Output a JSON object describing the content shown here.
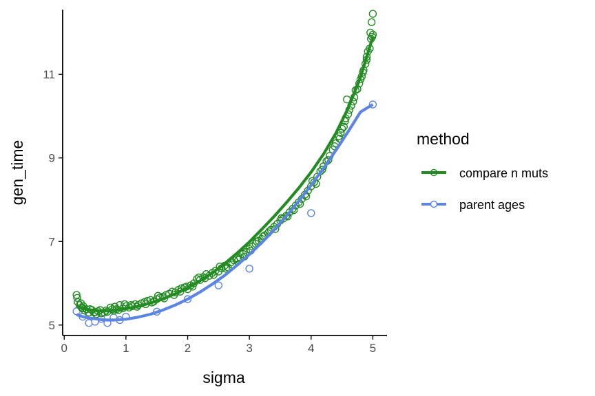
{
  "chart_data": {
    "type": "scatter",
    "xlabel": "sigma",
    "ylabel": "gen_time",
    "xlim": [
      -0.025,
      5.23
    ],
    "ylim": [
      4.75,
      12.55
    ],
    "xticks": [
      0,
      1,
      2,
      3,
      4,
      5
    ],
    "yticks": [
      5,
      7,
      9,
      11
    ],
    "xtick_labels": [
      "0",
      "1",
      "2",
      "3",
      "4",
      "5"
    ],
    "ytick_labels": [
      "5",
      "7",
      "9",
      "11"
    ],
    "grid": false,
    "legend": {
      "title": "method",
      "placement": "right"
    },
    "series": [
      {
        "name": "compare n muts",
        "color": "#228B22",
        "points": [
          [
            0.2,
            5.72
          ],
          [
            0.22,
            5.55
          ],
          [
            0.25,
            5.48
          ],
          [
            0.28,
            5.42
          ],
          [
            0.3,
            5.4
          ],
          [
            0.33,
            5.35
          ],
          [
            0.36,
            5.38
          ],
          [
            0.4,
            5.3
          ],
          [
            0.45,
            5.36
          ],
          [
            0.5,
            5.31
          ],
          [
            0.55,
            5.33
          ],
          [
            0.6,
            5.28
          ],
          [
            0.65,
            5.3
          ],
          [
            0.7,
            5.32
          ],
          [
            0.75,
            5.42
          ],
          [
            0.8,
            5.35
          ],
          [
            0.85,
            5.38
          ],
          [
            0.9,
            5.48
          ],
          [
            0.95,
            5.4
          ],
          [
            1.0,
            5.45
          ],
          [
            1.05,
            5.42
          ],
          [
            1.1,
            5.45
          ],
          [
            1.15,
            5.5
          ],
          [
            1.2,
            5.48
          ],
          [
            1.25,
            5.52
          ],
          [
            1.3,
            5.55
          ],
          [
            1.35,
            5.58
          ],
          [
            1.4,
            5.6
          ],
          [
            1.45,
            5.56
          ],
          [
            1.5,
            5.62
          ],
          [
            1.55,
            5.66
          ],
          [
            1.6,
            5.68
          ],
          [
            1.65,
            5.72
          ],
          [
            1.7,
            5.75
          ],
          [
            1.75,
            5.8
          ],
          [
            1.8,
            5.78
          ],
          [
            1.85,
            5.84
          ],
          [
            1.9,
            5.88
          ],
          [
            1.95,
            5.9
          ],
          [
            2.0,
            5.86
          ],
          [
            2.05,
            5.95
          ],
          [
            2.1,
            6.0
          ],
          [
            2.15,
            6.1
          ],
          [
            2.2,
            6.08
          ],
          [
            2.25,
            6.15
          ],
          [
            2.3,
            6.22
          ],
          [
            2.35,
            6.18
          ],
          [
            2.4,
            6.25
          ],
          [
            2.45,
            6.3
          ],
          [
            2.5,
            6.28
          ],
          [
            2.55,
            6.36
          ],
          [
            2.6,
            6.42
          ],
          [
            2.65,
            6.38
          ],
          [
            2.7,
            6.5
          ],
          [
            2.75,
            6.55
          ],
          [
            2.8,
            6.6
          ],
          [
            2.85,
            6.62
          ],
          [
            2.9,
            6.7
          ],
          [
            2.95,
            6.75
          ],
          [
            3.0,
            6.82
          ],
          [
            3.05,
            6.88
          ],
          [
            3.1,
            6.95
          ],
          [
            3.15,
            7.02
          ],
          [
            3.2,
            7.06
          ],
          [
            3.25,
            7.15
          ],
          [
            3.3,
            7.2
          ],
          [
            3.35,
            7.28
          ],
          [
            3.4,
            7.35
          ],
          [
            3.45,
            7.42
          ],
          [
            3.5,
            7.5
          ],
          [
            3.55,
            7.55
          ],
          [
            3.6,
            7.62
          ],
          [
            3.65,
            7.7
          ],
          [
            3.7,
            7.78
          ],
          [
            3.75,
            7.86
          ],
          [
            3.8,
            7.94
          ],
          [
            3.85,
            8.02
          ],
          [
            3.9,
            8.12
          ],
          [
            3.95,
            8.22
          ],
          [
            4.0,
            8.32
          ],
          [
            4.05,
            8.42
          ],
          [
            4.1,
            8.55
          ],
          [
            4.15,
            8.68
          ],
          [
            4.2,
            8.8
          ],
          [
            4.25,
            8.92
          ],
          [
            4.3,
            9.05
          ],
          [
            4.35,
            9.2
          ],
          [
            4.4,
            9.35
          ],
          [
            4.45,
            9.52
          ],
          [
            4.5,
            9.7
          ],
          [
            4.55,
            9.88
          ],
          [
            4.6,
            10.05
          ],
          [
            4.65,
            10.25
          ],
          [
            4.7,
            10.45
          ],
          [
            4.75,
            10.65
          ],
          [
            4.8,
            10.88
          ],
          [
            4.85,
            11.1
          ],
          [
            4.9,
            11.35
          ],
          [
            4.95,
            11.62
          ],
          [
            5.0,
            12.45
          ],
          [
            0.21,
            5.65
          ],
          [
            0.27,
            5.52
          ],
          [
            0.31,
            5.45
          ],
          [
            0.42,
            5.38
          ],
          [
            0.48,
            5.3
          ],
          [
            0.52,
            5.26
          ],
          [
            0.58,
            5.36
          ],
          [
            0.68,
            5.35
          ],
          [
            0.78,
            5.38
          ],
          [
            0.82,
            5.44
          ],
          [
            0.88,
            5.36
          ],
          [
            0.98,
            5.5
          ],
          [
            1.08,
            5.48
          ],
          [
            1.18,
            5.44
          ],
          [
            1.32,
            5.5
          ],
          [
            1.42,
            5.54
          ],
          [
            1.52,
            5.7
          ],
          [
            1.62,
            5.64
          ],
          [
            1.78,
            5.72
          ],
          [
            1.88,
            5.8
          ],
          [
            1.98,
            5.92
          ],
          [
            2.08,
            5.92
          ],
          [
            2.18,
            6.14
          ],
          [
            2.28,
            6.12
          ],
          [
            2.42,
            6.2
          ],
          [
            2.52,
            6.4
          ],
          [
            2.62,
            6.35
          ],
          [
            2.72,
            6.45
          ],
          [
            2.82,
            6.56
          ],
          [
            2.92,
            6.64
          ],
          [
            3.02,
            6.78
          ],
          [
            3.12,
            7.0
          ],
          [
            3.22,
            7.12
          ],
          [
            3.32,
            7.24
          ],
          [
            3.42,
            7.3
          ],
          [
            3.52,
            7.56
          ],
          [
            3.62,
            7.6
          ],
          [
            3.72,
            7.75
          ],
          [
            3.82,
            7.9
          ],
          [
            3.92,
            8.08
          ],
          [
            4.02,
            8.45
          ],
          [
            4.08,
            8.38
          ],
          [
            4.18,
            8.72
          ],
          [
            4.28,
            8.95
          ],
          [
            4.38,
            9.28
          ],
          [
            4.48,
            9.6
          ],
          [
            4.53,
            9.75
          ],
          [
            4.58,
            10.4
          ],
          [
            4.62,
            10.15
          ],
          [
            4.68,
            10.35
          ],
          [
            4.72,
            10.62
          ],
          [
            4.78,
            10.78
          ],
          [
            4.82,
            10.95
          ],
          [
            4.88,
            11.25
          ],
          [
            4.92,
            11.55
          ],
          [
            4.96,
            12.0
          ],
          [
            4.98,
            12.25
          ],
          [
            5.0,
            11.95
          ],
          [
            4.97,
            11.85
          ],
          [
            4.99,
            11.9
          ],
          [
            4.9,
            11.42
          ],
          [
            4.84,
            11.05
          ],
          [
            4.56,
            9.95
          ],
          [
            4.46,
            9.46
          ]
        ],
        "fit_x": [
          0.2,
          0.3,
          0.4,
          0.5,
          0.6,
          0.7,
          0.8,
          0.9,
          1.0,
          1.2,
          1.4,
          1.6,
          1.8,
          2.0,
          2.2,
          2.4,
          2.6,
          2.8,
          3.0,
          3.2,
          3.4,
          3.6,
          3.8,
          4.0,
          4.2,
          4.4,
          4.6,
          4.8,
          5.0
        ],
        "fit_y": [
          5.45,
          5.4,
          5.37,
          5.35,
          5.34,
          5.34,
          5.35,
          5.37,
          5.39,
          5.45,
          5.53,
          5.63,
          5.75,
          5.89,
          6.06,
          6.25,
          6.47,
          6.72,
          6.99,
          7.29,
          7.6,
          7.93,
          8.28,
          8.66,
          9.09,
          9.59,
          10.19,
          10.93,
          11.9
        ]
      },
      {
        "name": "parent ages",
        "color": "#5B84E3",
        "points": [
          [
            0.2,
            5.33
          ],
          [
            0.3,
            5.2
          ],
          [
            0.4,
            5.05
          ],
          [
            0.5,
            5.08
          ],
          [
            0.6,
            5.15
          ],
          [
            0.7,
            5.05
          ],
          [
            0.8,
            5.18
          ],
          [
            0.9,
            5.12
          ],
          [
            1.0,
            5.2
          ],
          [
            1.5,
            5.32
          ],
          [
            2.0,
            5.62
          ],
          [
            2.5,
            5.95
          ],
          [
            3.0,
            6.35
          ],
          [
            4.0,
            7.68
          ],
          [
            5.0,
            10.28
          ]
        ],
        "fit_x": [
          0.2,
          0.3,
          0.4,
          0.5,
          0.6,
          0.7,
          0.8,
          0.9,
          1.0,
          1.2,
          1.4,
          1.6,
          1.8,
          2.0,
          2.2,
          2.4,
          2.6,
          2.8,
          3.0,
          3.2,
          3.4,
          3.6,
          3.8,
          4.0,
          4.2,
          4.4,
          4.6,
          4.8,
          5.0
        ],
        "fit_y": [
          5.25,
          5.2,
          5.17,
          5.15,
          5.13,
          5.12,
          5.12,
          5.13,
          5.14,
          5.19,
          5.26,
          5.36,
          5.48,
          5.62,
          5.79,
          5.98,
          6.19,
          6.43,
          6.69,
          6.97,
          7.28,
          7.61,
          7.97,
          8.35,
          8.75,
          9.18,
          9.63,
          10.1,
          10.28
        ]
      }
    ]
  }
}
